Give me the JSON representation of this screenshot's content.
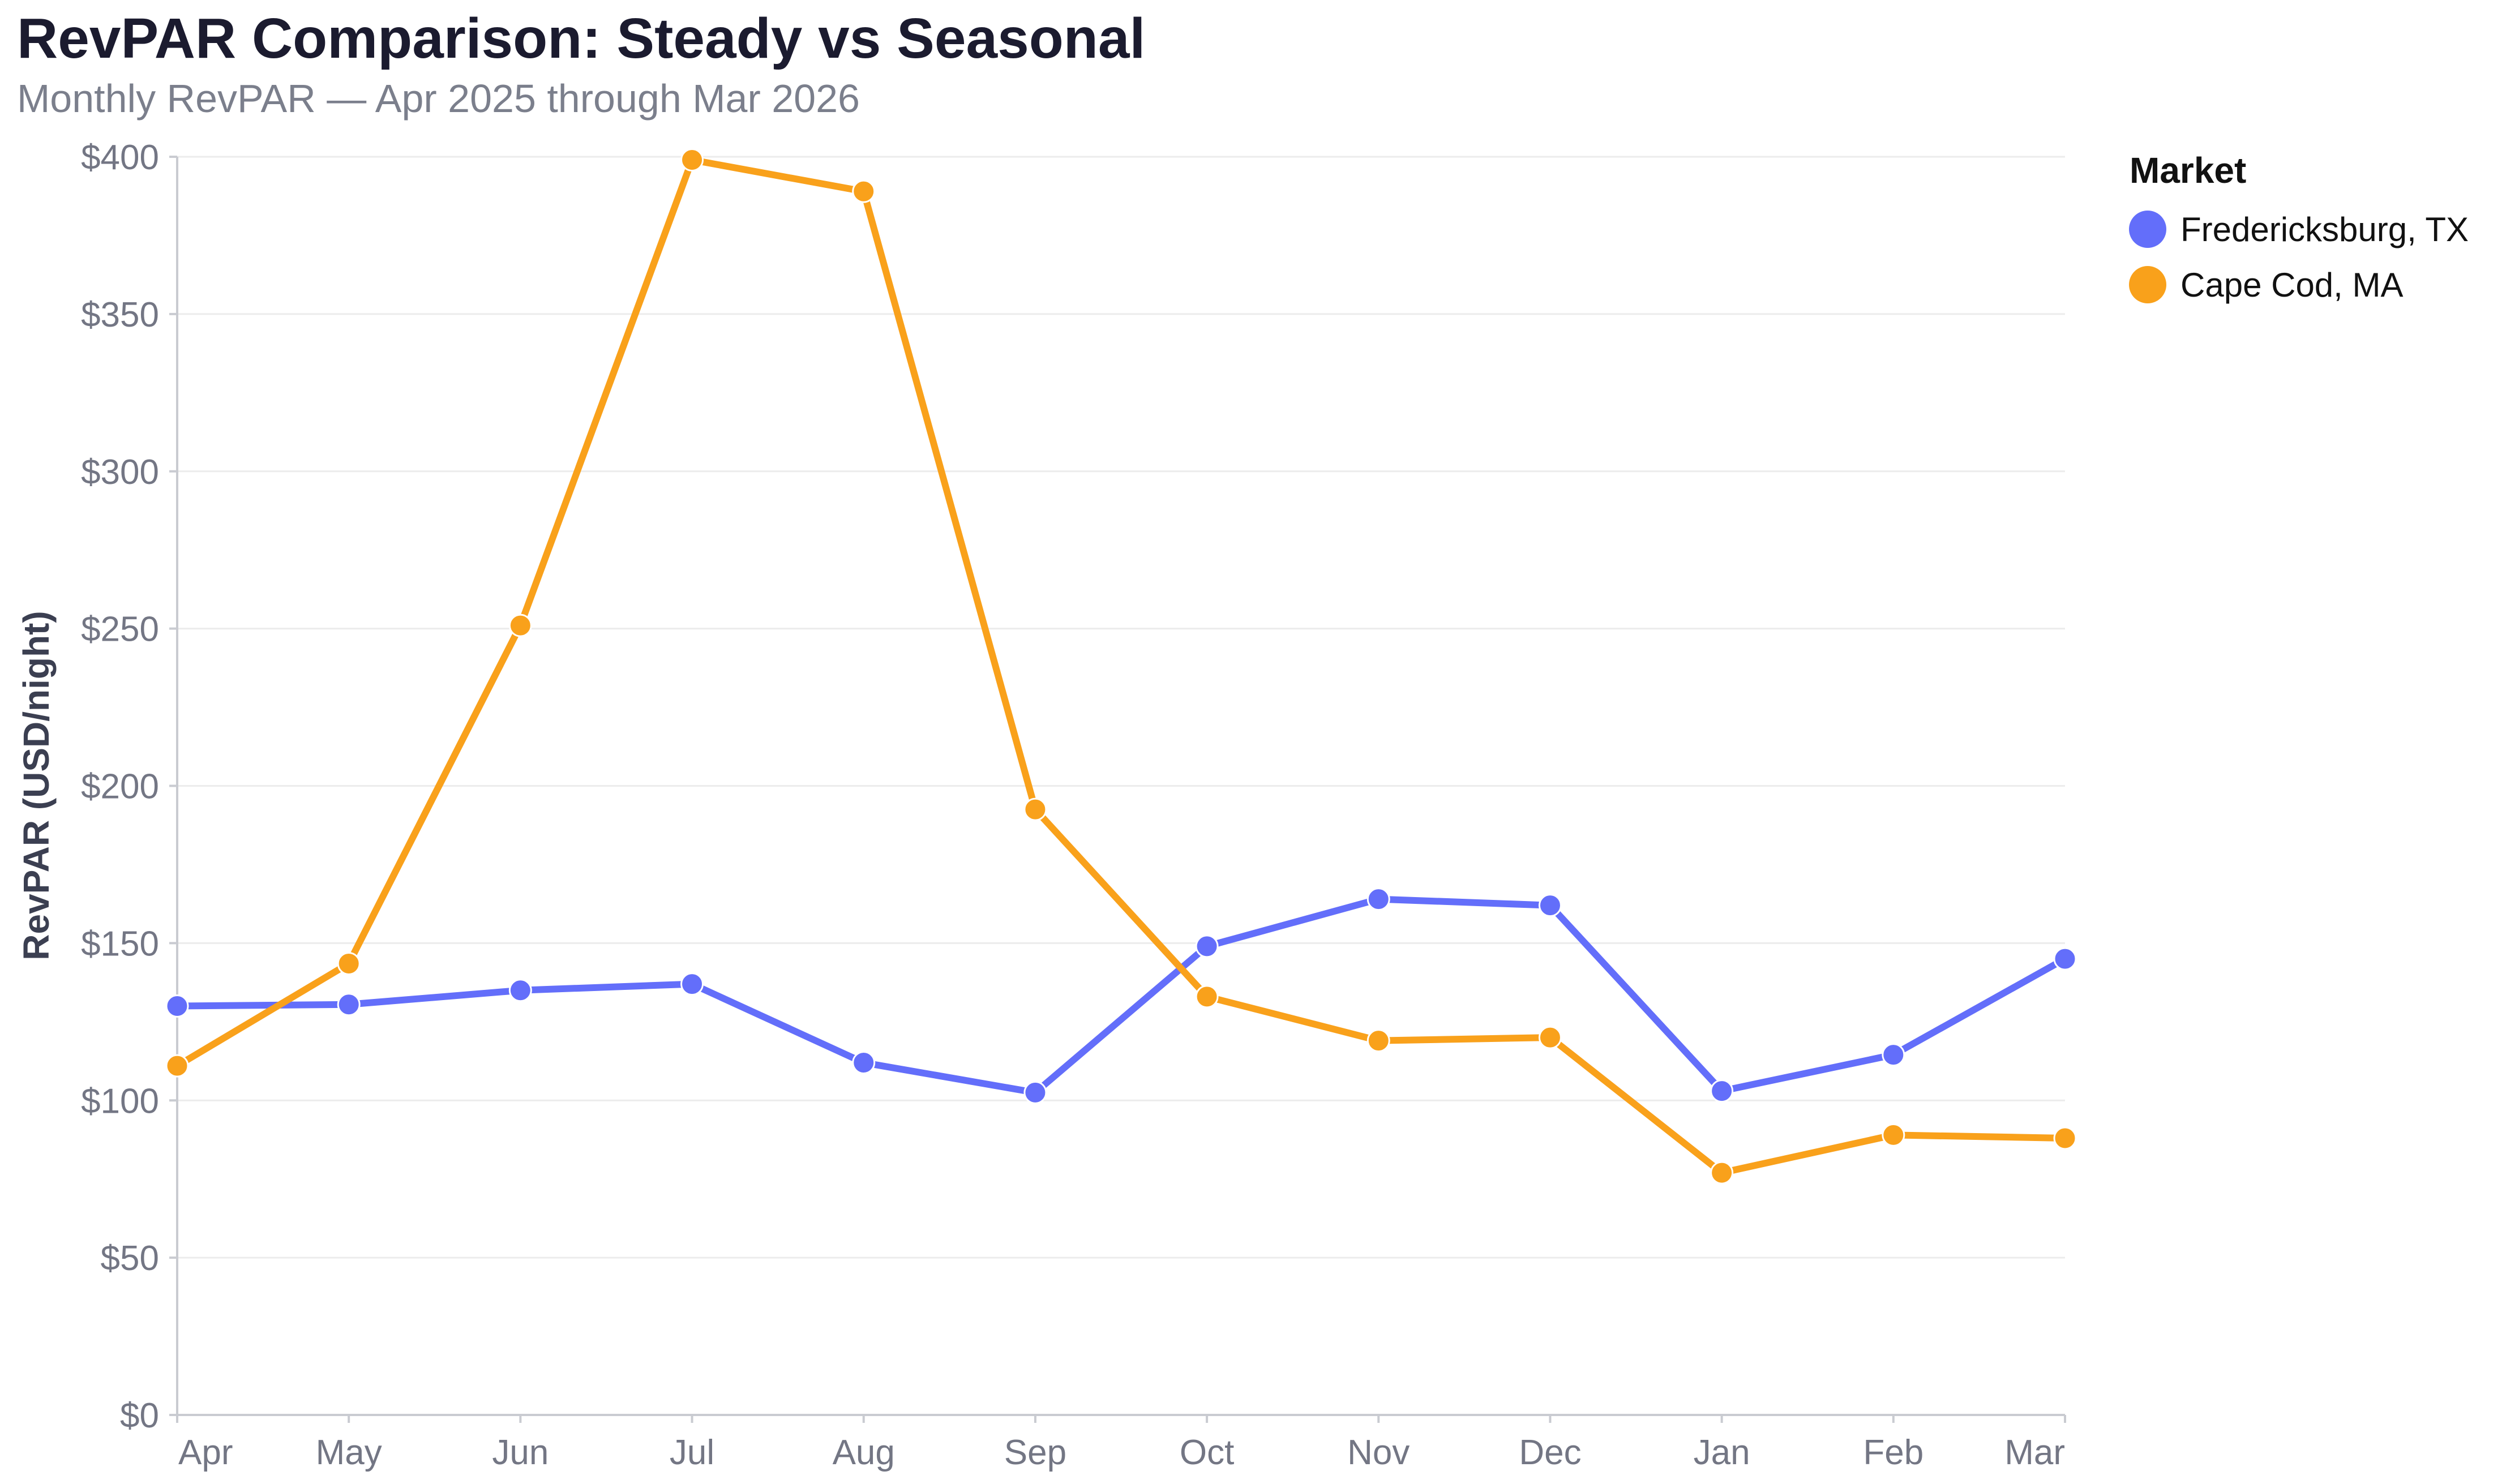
{
  "title": "RevPAR Comparison: Steady vs Seasonal",
  "subtitle": "Monthly RevPAR — Apr 2025 through Mar 2026",
  "chart_data": {
    "type": "line",
    "title": "RevPAR Comparison: Steady vs Seasonal",
    "subtitle": "Monthly RevPAR — Apr 2025 through Mar 2026",
    "xlabel": "",
    "ylabel": "RevPAR (USD/night)",
    "categories": [
      "Apr",
      "May",
      "Jun",
      "Jul",
      "Aug",
      "Sep",
      "Oct",
      "Nov",
      "Dec",
      "Jan",
      "Feb",
      "Mar"
    ],
    "ylim": [
      0,
      400
    ],
    "yticks": [
      0,
      50,
      100,
      150,
      200,
      250,
      300,
      350,
      400
    ],
    "ytick_labels": [
      "$0",
      "$50",
      "$100",
      "$150",
      "$200",
      "$250",
      "$300",
      "$350",
      "$400"
    ],
    "grid": true,
    "legend": {
      "title": "Market",
      "position": "top-right"
    },
    "series": [
      {
        "name": "Fredericksburg, TX",
        "color": "#636efa",
        "values": [
          130,
          130.5,
          135,
          137,
          112,
          102.5,
          149,
          164,
          162,
          103,
          114.5,
          145
        ]
      },
      {
        "name": "Cape Cod, MA",
        "color": "#f9a11b",
        "values": [
          111,
          143.5,
          251,
          399,
          389,
          192.5,
          133,
          119,
          120,
          77,
          89,
          88
        ]
      }
    ]
  }
}
